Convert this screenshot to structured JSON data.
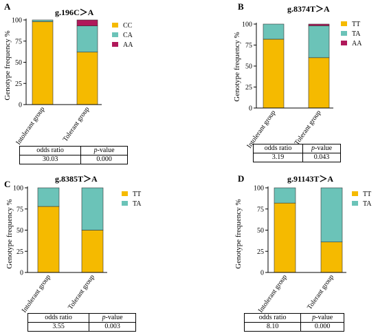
{
  "colors": {
    "CC": "#F5BA00",
    "TT": "#F5BA00",
    "CA": "#6BC3B8",
    "TA": "#6BC3B8",
    "AA": "#B0185A"
  },
  "chart_data": [
    {
      "panel": "A",
      "type": "bar",
      "stacked": true,
      "title": "g.196C＞A",
      "ylabel": "Genotype frequency %",
      "categories": [
        "Intolerant group",
        "Tolerant group"
      ],
      "ylim": [
        0,
        100
      ],
      "yticks": [
        0,
        25,
        50,
        75,
        100
      ],
      "series": [
        {
          "name": "CC",
          "values": [
            98,
            62
          ]
        },
        {
          "name": "CA",
          "values": [
            2,
            31
          ]
        },
        {
          "name": "AA",
          "values": [
            0,
            7
          ]
        }
      ],
      "table": {
        "h1": "odds ratio",
        "h2_italic": "p",
        "h2_rest": "-value",
        "v1": "30.03",
        "v2": "0.000"
      }
    },
    {
      "panel": "B",
      "type": "bar",
      "stacked": true,
      "title": "g.8374T＞A",
      "ylabel": "Genotype frequency %",
      "categories": [
        "Intolerant group",
        "Tolerant group"
      ],
      "ylim": [
        0,
        100
      ],
      "yticks": [
        0,
        25,
        50,
        75,
        100
      ],
      "series": [
        {
          "name": "TT",
          "values": [
            82,
            60
          ]
        },
        {
          "name": "TA",
          "values": [
            18,
            38
          ]
        },
        {
          "name": "AA",
          "values": [
            0,
            2
          ]
        }
      ],
      "table": {
        "h1": "odds ratio",
        "h2_italic": "p",
        "h2_rest": "-value",
        "v1": "3.19",
        "v2": "0.043"
      }
    },
    {
      "panel": "C",
      "type": "bar",
      "stacked": true,
      "title": "g.8385T＞A",
      "ylabel": "Genotype frequency %",
      "categories": [
        "Intolerant group",
        "Tolerant group"
      ],
      "ylim": [
        0,
        100
      ],
      "yticks": [
        0,
        25,
        50,
        75,
        100
      ],
      "series": [
        {
          "name": "TT",
          "values": [
            78,
            50
          ]
        },
        {
          "name": "TA",
          "values": [
            22,
            50
          ]
        }
      ],
      "table": {
        "h1": "odds ratio",
        "h2_italic": "p",
        "h2_rest": "-value",
        "v1": "3.55",
        "v2": "0.003"
      }
    },
    {
      "panel": "D",
      "type": "bar",
      "stacked": true,
      "title": "g.91143T＞A",
      "ylabel": "Genotype frequency %",
      "categories": [
        "Intolerant group",
        "Tolerant group"
      ],
      "ylim": [
        0,
        100
      ],
      "yticks": [
        0,
        25,
        50,
        75,
        100
      ],
      "series": [
        {
          "name": "TT",
          "values": [
            82,
            36
          ]
        },
        {
          "name": "TA",
          "values": [
            18,
            64
          ]
        }
      ],
      "table": {
        "h1": "odds ratio",
        "h2_italic": "p",
        "h2_rest": "-value",
        "v1": "8.10",
        "v2": "0.000"
      }
    }
  ]
}
